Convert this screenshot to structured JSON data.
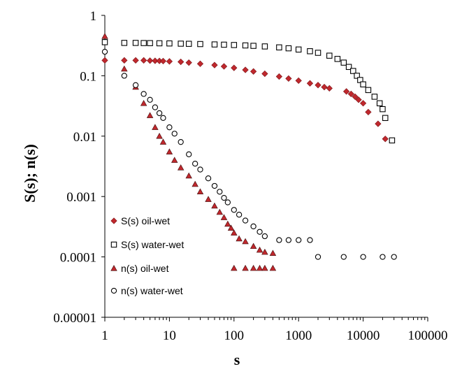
{
  "chart_data": {
    "type": "scatter",
    "title": "",
    "xlabel": "s",
    "ylabel": "S(s); n(s)",
    "x_scale": "log",
    "y_scale": "log",
    "xlim": [
      1,
      100000
    ],
    "ylim": [
      1e-05,
      1
    ],
    "x_ticks": [
      "1",
      "10",
      "100",
      "1000",
      "10000",
      "100000"
    ],
    "y_ticks": [
      "1",
      "0.1",
      "0.01",
      "0.001",
      "0.0001",
      "0.00001"
    ],
    "grid": false,
    "legend_position": "bottom-left",
    "series": [
      {
        "name": "S(s) oil-wet",
        "marker": "diamond",
        "color": "#c0282d",
        "points": [
          [
            1,
            0.18
          ],
          [
            2,
            0.18
          ],
          [
            3,
            0.18
          ],
          [
            4,
            0.18
          ],
          [
            5,
            0.178
          ],
          [
            6,
            0.177
          ],
          [
            7,
            0.176
          ],
          [
            8,
            0.175
          ],
          [
            10,
            0.173
          ],
          [
            15,
            0.17
          ],
          [
            20,
            0.165
          ],
          [
            30,
            0.158
          ],
          [
            50,
            0.15
          ],
          [
            70,
            0.143
          ],
          [
            100,
            0.135
          ],
          [
            150,
            0.125
          ],
          [
            200,
            0.118
          ],
          [
            300,
            0.108
          ],
          [
            500,
            0.097
          ],
          [
            700,
            0.09
          ],
          [
            1000,
            0.083
          ],
          [
            1500,
            0.075
          ],
          [
            2000,
            0.07
          ],
          [
            2500,
            0.065
          ],
          [
            3000,
            0.062
          ],
          [
            5500,
            0.055
          ],
          [
            6500,
            0.05
          ],
          [
            7500,
            0.045
          ],
          [
            8500,
            0.04
          ],
          [
            10000,
            0.035
          ],
          [
            12000,
            0.025
          ],
          [
            17000,
            0.016
          ],
          [
            22000,
            0.009
          ]
        ]
      },
      {
        "name": "S(s) water-wet",
        "marker": "square",
        "color": "#000000",
        "points": [
          [
            1,
            0.36
          ],
          [
            2,
            0.35
          ],
          [
            3,
            0.35
          ],
          [
            4,
            0.348
          ],
          [
            5,
            0.347
          ],
          [
            7,
            0.345
          ],
          [
            10,
            0.343
          ],
          [
            15,
            0.34
          ],
          [
            20,
            0.338
          ],
          [
            30,
            0.335
          ],
          [
            50,
            0.33
          ],
          [
            70,
            0.327
          ],
          [
            100,
            0.323
          ],
          [
            150,
            0.318
          ],
          [
            200,
            0.313
          ],
          [
            300,
            0.306
          ],
          [
            500,
            0.295
          ],
          [
            700,
            0.285
          ],
          [
            1000,
            0.272
          ],
          [
            1500,
            0.255
          ],
          [
            2000,
            0.24
          ],
          [
            3000,
            0.215
          ],
          [
            4000,
            0.19
          ],
          [
            5000,
            0.165
          ],
          [
            6000,
            0.14
          ],
          [
            7000,
            0.12
          ],
          [
            8000,
            0.1
          ],
          [
            9000,
            0.085
          ],
          [
            10000,
            0.072
          ],
          [
            12000,
            0.058
          ],
          [
            15000,
            0.045
          ],
          [
            18000,
            0.035
          ],
          [
            20000,
            0.028
          ],
          [
            22000,
            0.02
          ],
          [
            28000,
            0.0085
          ]
        ]
      },
      {
        "name": "n(s) oil-wet",
        "marker": "triangle",
        "color": "#c0282d",
        "points": [
          [
            1,
            0.45
          ],
          [
            2,
            0.13
          ],
          [
            3,
            0.065
          ],
          [
            4,
            0.035
          ],
          [
            5,
            0.022
          ],
          [
            6,
            0.014
          ],
          [
            7,
            0.01
          ],
          [
            8,
            0.008
          ],
          [
            10,
            0.0055
          ],
          [
            12,
            0.004
          ],
          [
            15,
            0.003
          ],
          [
            20,
            0.0022
          ],
          [
            25,
            0.0016
          ],
          [
            30,
            0.0012
          ],
          [
            40,
            0.0009
          ],
          [
            50,
            0.0007
          ],
          [
            60,
            0.00055
          ],
          [
            70,
            0.00045
          ],
          [
            80,
            0.00035
          ],
          [
            90,
            0.0003
          ],
          [
            100,
            0.00025
          ],
          [
            120,
            0.0002
          ],
          [
            150,
            0.00018
          ],
          [
            200,
            0.00015
          ],
          [
            250,
            0.00013
          ],
          [
            300,
            0.00012
          ],
          [
            400,
            0.000115
          ],
          [
            100,
            6.5e-05
          ],
          [
            150,
            6.5e-05
          ],
          [
            200,
            6.5e-05
          ],
          [
            250,
            6.5e-05
          ],
          [
            300,
            6.5e-05
          ],
          [
            400,
            6.5e-05
          ]
        ]
      },
      {
        "name": "n(s) water-wet",
        "marker": "circle",
        "color": "#000000",
        "points": [
          [
            1,
            0.25
          ],
          [
            2,
            0.1
          ],
          [
            3,
            0.07
          ],
          [
            4,
            0.05
          ],
          [
            5,
            0.04
          ],
          [
            6,
            0.03
          ],
          [
            7,
            0.024
          ],
          [
            8,
            0.02
          ],
          [
            10,
            0.014
          ],
          [
            12,
            0.011
          ],
          [
            15,
            0.008
          ],
          [
            20,
            0.005
          ],
          [
            25,
            0.0035
          ],
          [
            30,
            0.0028
          ],
          [
            40,
            0.002
          ],
          [
            50,
            0.0015
          ],
          [
            60,
            0.0012
          ],
          [
            70,
            0.00095
          ],
          [
            80,
            0.0008
          ],
          [
            100,
            0.0006
          ],
          [
            120,
            0.0005
          ],
          [
            150,
            0.0004
          ],
          [
            200,
            0.00032
          ],
          [
            250,
            0.00026
          ],
          [
            300,
            0.00022
          ],
          [
            500,
            0.00019
          ],
          [
            700,
            0.00019
          ],
          [
            1000,
            0.00019
          ],
          [
            1500,
            0.00019
          ],
          [
            2000,
            0.0001
          ],
          [
            5000,
            0.0001
          ],
          [
            10000,
            0.0001
          ],
          [
            20000,
            0.0001
          ],
          [
            30000,
            0.0001
          ]
        ]
      }
    ]
  }
}
